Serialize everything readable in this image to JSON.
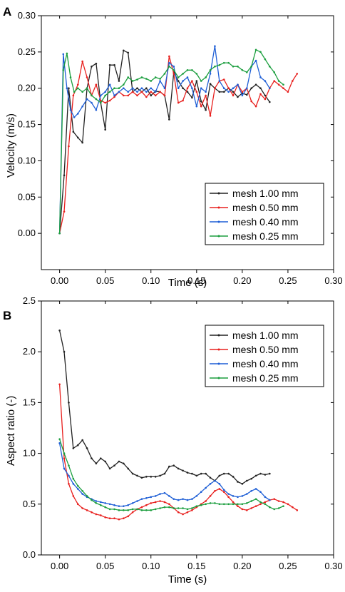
{
  "chart_data": [
    {
      "type": "line",
      "panel_label": "A",
      "xlabel": "Time (s)",
      "ylabel": "Velocity (m/s)",
      "xlim": [
        -0.02,
        0.3
      ],
      "ylim": [
        -0.05,
        0.3
      ],
      "xticks": [
        "0.00",
        "0.05",
        "0.10",
        "0.15",
        "0.20",
        "0.25",
        "0.30"
      ],
      "yticks": [
        "0.00",
        "0.05",
        "0.10",
        "0.15",
        "0.20",
        "0.25",
        "0.30"
      ],
      "legend_placement": "bottom-right",
      "series": [
        {
          "name": "mesh 1.00 mm",
          "color": "#222222",
          "x": [
            0.0,
            0.005,
            0.01,
            0.015,
            0.02,
            0.025,
            0.03,
            0.035,
            0.04,
            0.045,
            0.05,
            0.055,
            0.06,
            0.065,
            0.07,
            0.075,
            0.08,
            0.085,
            0.09,
            0.095,
            0.1,
            0.105,
            0.11,
            0.115,
            0.12,
            0.125,
            0.13,
            0.135,
            0.14,
            0.145,
            0.15,
            0.155,
            0.16,
            0.165,
            0.17,
            0.175,
            0.18,
            0.185,
            0.19,
            0.195,
            0.2,
            0.205,
            0.21,
            0.215,
            0.22,
            0.225,
            0.23
          ],
          "y": [
            0.0,
            0.08,
            0.2,
            0.14,
            0.132,
            0.125,
            0.2,
            0.23,
            0.234,
            0.18,
            0.143,
            0.232,
            0.232,
            0.21,
            0.252,
            0.249,
            0.195,
            0.2,
            0.195,
            0.2,
            0.19,
            0.196,
            0.195,
            0.19,
            0.157,
            0.222,
            0.21,
            0.2,
            0.195,
            0.187,
            0.21,
            0.182,
            0.17,
            0.206,
            0.2,
            0.195,
            0.195,
            0.2,
            0.195,
            0.188,
            0.193,
            0.191,
            0.2,
            0.205,
            0.2,
            0.19,
            0.181
          ]
        },
        {
          "name": "mesh 0.50 mm",
          "color": "#e8201e",
          "x": [
            0.0,
            0.005,
            0.01,
            0.015,
            0.02,
            0.025,
            0.03,
            0.035,
            0.04,
            0.045,
            0.05,
            0.055,
            0.06,
            0.065,
            0.07,
            0.075,
            0.08,
            0.085,
            0.09,
            0.095,
            0.1,
            0.105,
            0.11,
            0.115,
            0.12,
            0.125,
            0.13,
            0.135,
            0.14,
            0.145,
            0.15,
            0.155,
            0.16,
            0.165,
            0.17,
            0.175,
            0.18,
            0.185,
            0.19,
            0.195,
            0.2,
            0.205,
            0.21,
            0.215,
            0.22,
            0.225,
            0.23,
            0.235,
            0.24,
            0.245,
            0.25,
            0.255,
            0.26
          ],
          "y": [
            0.0,
            0.03,
            0.12,
            0.19,
            0.205,
            0.237,
            0.215,
            0.19,
            0.205,
            0.183,
            0.18,
            0.183,
            0.188,
            0.195,
            0.19,
            0.19,
            0.195,
            0.19,
            0.195,
            0.188,
            0.195,
            0.19,
            0.195,
            0.19,
            0.244,
            0.22,
            0.18,
            0.183,
            0.2,
            0.21,
            0.195,
            0.175,
            0.19,
            0.162,
            0.2,
            0.21,
            0.212,
            0.2,
            0.19,
            0.205,
            0.195,
            0.2,
            0.182,
            0.175,
            0.192,
            0.185,
            0.2,
            0.21,
            0.205,
            0.2,
            0.195,
            0.21,
            0.22
          ]
        },
        {
          "name": "mesh 0.40 mm",
          "color": "#1f5fd6",
          "x": [
            0.0,
            0.004,
            0.008,
            0.012,
            0.016,
            0.02,
            0.025,
            0.03,
            0.035,
            0.04,
            0.045,
            0.05,
            0.055,
            0.06,
            0.065,
            0.07,
            0.075,
            0.08,
            0.085,
            0.09,
            0.095,
            0.1,
            0.105,
            0.11,
            0.115,
            0.12,
            0.125,
            0.13,
            0.135,
            0.14,
            0.145,
            0.15,
            0.155,
            0.16,
            0.165,
            0.17,
            0.175,
            0.18,
            0.185,
            0.19,
            0.195,
            0.2,
            0.205,
            0.21,
            0.215,
            0.22,
            0.225,
            0.23
          ],
          "y": [
            0.0,
            0.247,
            0.2,
            0.17,
            0.16,
            0.165,
            0.175,
            0.185,
            0.18,
            0.17,
            0.19,
            0.195,
            0.205,
            0.19,
            0.195,
            0.2,
            0.195,
            0.2,
            0.195,
            0.2,
            0.195,
            0.2,
            0.195,
            0.21,
            0.2,
            0.235,
            0.23,
            0.2,
            0.21,
            0.215,
            0.2,
            0.175,
            0.2,
            0.195,
            0.22,
            0.258,
            0.21,
            0.2,
            0.195,
            0.2,
            0.205,
            0.19,
            0.2,
            0.23,
            0.238,
            0.215,
            0.21,
            0.2
          ]
        },
        {
          "name": "mesh 0.25 mm",
          "color": "#1b9e3e",
          "x": [
            0.0,
            0.004,
            0.008,
            0.012,
            0.016,
            0.02,
            0.025,
            0.03,
            0.035,
            0.04,
            0.045,
            0.05,
            0.055,
            0.06,
            0.065,
            0.07,
            0.075,
            0.08,
            0.085,
            0.09,
            0.095,
            0.1,
            0.105,
            0.11,
            0.115,
            0.12,
            0.125,
            0.13,
            0.135,
            0.14,
            0.145,
            0.15,
            0.155,
            0.16,
            0.165,
            0.17,
            0.175,
            0.18,
            0.185,
            0.19,
            0.195,
            0.2,
            0.205,
            0.21,
            0.215,
            0.22,
            0.225,
            0.23,
            0.235,
            0.24,
            0.245
          ],
          "y": [
            0.0,
            0.225,
            0.248,
            0.215,
            0.195,
            0.2,
            0.195,
            0.2,
            0.19,
            0.185,
            0.18,
            0.19,
            0.195,
            0.2,
            0.2,
            0.205,
            0.215,
            0.21,
            0.212,
            0.215,
            0.213,
            0.21,
            0.215,
            0.213,
            0.22,
            0.23,
            0.225,
            0.215,
            0.22,
            0.225,
            0.225,
            0.22,
            0.21,
            0.215,
            0.225,
            0.23,
            0.232,
            0.235,
            0.235,
            0.23,
            0.23,
            0.225,
            0.222,
            0.23,
            0.253,
            0.25,
            0.24,
            0.23,
            0.222,
            0.21,
            0.205
          ]
        }
      ]
    },
    {
      "type": "line",
      "panel_label": "B",
      "xlabel": "Time (s)",
      "ylabel": "Aspect ratio (-)",
      "xlim": [
        -0.02,
        0.3
      ],
      "ylim": [
        0.0,
        2.5
      ],
      "xticks": [
        "0.00",
        "0.05",
        "0.10",
        "0.15",
        "0.20",
        "0.25",
        "0.30"
      ],
      "yticks": [
        "0.0",
        "0.5",
        "1.0",
        "1.5",
        "2.0",
        "2.5"
      ],
      "legend_placement": "top-right",
      "series": [
        {
          "name": "mesh 1.00 mm",
          "color": "#222222",
          "x": [
            0.0,
            0.005,
            0.01,
            0.015,
            0.02,
            0.025,
            0.03,
            0.035,
            0.04,
            0.045,
            0.05,
            0.055,
            0.06,
            0.065,
            0.07,
            0.075,
            0.08,
            0.085,
            0.09,
            0.095,
            0.1,
            0.105,
            0.11,
            0.115,
            0.12,
            0.125,
            0.13,
            0.135,
            0.14,
            0.145,
            0.15,
            0.155,
            0.16,
            0.165,
            0.17,
            0.175,
            0.18,
            0.185,
            0.19,
            0.195,
            0.2,
            0.205,
            0.21,
            0.215,
            0.22,
            0.225,
            0.23
          ],
          "y": [
            2.21,
            2.0,
            1.5,
            1.05,
            1.08,
            1.13,
            1.05,
            0.95,
            0.9,
            0.95,
            0.92,
            0.85,
            0.88,
            0.92,
            0.9,
            0.85,
            0.8,
            0.78,
            0.76,
            0.77,
            0.77,
            0.77,
            0.78,
            0.8,
            0.87,
            0.88,
            0.85,
            0.83,
            0.81,
            0.8,
            0.78,
            0.8,
            0.8,
            0.76,
            0.73,
            0.78,
            0.8,
            0.8,
            0.77,
            0.72,
            0.7,
            0.73,
            0.75,
            0.78,
            0.8,
            0.79,
            0.8
          ]
        },
        {
          "name": "mesh 0.50 mm",
          "color": "#e8201e",
          "x": [
            0.0,
            0.005,
            0.01,
            0.015,
            0.02,
            0.025,
            0.03,
            0.035,
            0.04,
            0.045,
            0.05,
            0.055,
            0.06,
            0.065,
            0.07,
            0.075,
            0.08,
            0.085,
            0.09,
            0.095,
            0.1,
            0.105,
            0.11,
            0.115,
            0.12,
            0.125,
            0.13,
            0.135,
            0.14,
            0.145,
            0.15,
            0.155,
            0.16,
            0.165,
            0.17,
            0.175,
            0.18,
            0.185,
            0.19,
            0.195,
            0.2,
            0.205,
            0.21,
            0.215,
            0.22,
            0.225,
            0.23,
            0.235,
            0.24,
            0.245,
            0.25,
            0.255,
            0.26
          ],
          "y": [
            1.68,
            0.95,
            0.7,
            0.58,
            0.5,
            0.46,
            0.44,
            0.42,
            0.4,
            0.39,
            0.37,
            0.36,
            0.36,
            0.35,
            0.36,
            0.38,
            0.42,
            0.45,
            0.47,
            0.49,
            0.51,
            0.52,
            0.53,
            0.52,
            0.5,
            0.46,
            0.42,
            0.4,
            0.42,
            0.44,
            0.47,
            0.5,
            0.53,
            0.58,
            0.63,
            0.65,
            0.62,
            0.57,
            0.52,
            0.48,
            0.45,
            0.44,
            0.46,
            0.48,
            0.5,
            0.52,
            0.54,
            0.55,
            0.53,
            0.52,
            0.5,
            0.47,
            0.44
          ]
        },
        {
          "name": "mesh 0.40 mm",
          "color": "#1f5fd6",
          "x": [
            0.0,
            0.005,
            0.01,
            0.015,
            0.02,
            0.025,
            0.03,
            0.035,
            0.04,
            0.045,
            0.05,
            0.055,
            0.06,
            0.065,
            0.07,
            0.075,
            0.08,
            0.085,
            0.09,
            0.095,
            0.1,
            0.105,
            0.11,
            0.115,
            0.12,
            0.125,
            0.13,
            0.135,
            0.14,
            0.145,
            0.15,
            0.155,
            0.16,
            0.165,
            0.17,
            0.175,
            0.18,
            0.185,
            0.19,
            0.195,
            0.2,
            0.205,
            0.21,
            0.215,
            0.22,
            0.225,
            0.23
          ],
          "y": [
            1.1,
            0.85,
            0.78,
            0.7,
            0.65,
            0.6,
            0.57,
            0.55,
            0.53,
            0.52,
            0.51,
            0.5,
            0.49,
            0.48,
            0.48,
            0.49,
            0.51,
            0.53,
            0.55,
            0.56,
            0.57,
            0.58,
            0.6,
            0.61,
            0.58,
            0.55,
            0.54,
            0.55,
            0.54,
            0.55,
            0.58,
            0.62,
            0.66,
            0.7,
            0.73,
            0.7,
            0.64,
            0.6,
            0.58,
            0.57,
            0.58,
            0.6,
            0.63,
            0.65,
            0.62,
            0.57,
            0.54
          ]
        },
        {
          "name": "mesh 0.25 mm",
          "color": "#1b9e3e",
          "x": [
            0.0,
            0.005,
            0.01,
            0.015,
            0.02,
            0.025,
            0.03,
            0.035,
            0.04,
            0.045,
            0.05,
            0.055,
            0.06,
            0.065,
            0.07,
            0.075,
            0.08,
            0.085,
            0.09,
            0.095,
            0.1,
            0.105,
            0.11,
            0.115,
            0.12,
            0.125,
            0.13,
            0.135,
            0.14,
            0.145,
            0.15,
            0.155,
            0.16,
            0.165,
            0.17,
            0.175,
            0.18,
            0.185,
            0.19,
            0.195,
            0.2,
            0.205,
            0.21,
            0.215,
            0.22,
            0.225,
            0.23,
            0.235,
            0.24,
            0.245
          ],
          "y": [
            1.14,
            1.0,
            0.88,
            0.75,
            0.68,
            0.63,
            0.58,
            0.54,
            0.51,
            0.49,
            0.47,
            0.45,
            0.45,
            0.44,
            0.44,
            0.44,
            0.45,
            0.45,
            0.44,
            0.44,
            0.44,
            0.45,
            0.46,
            0.47,
            0.47,
            0.46,
            0.46,
            0.46,
            0.45,
            0.46,
            0.48,
            0.49,
            0.5,
            0.51,
            0.51,
            0.5,
            0.5,
            0.5,
            0.5,
            0.5,
            0.5,
            0.51,
            0.53,
            0.55,
            0.52,
            0.5,
            0.47,
            0.45,
            0.46,
            0.48
          ]
        }
      ]
    }
  ]
}
